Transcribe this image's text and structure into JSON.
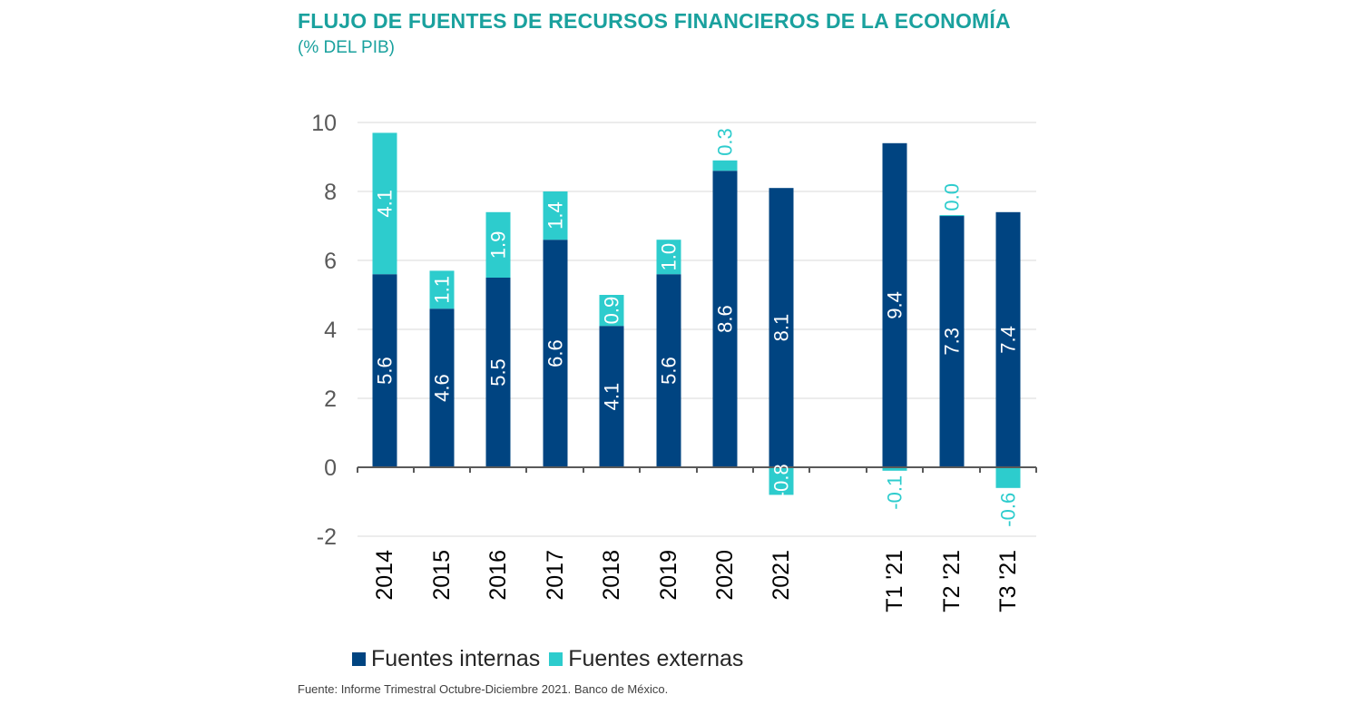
{
  "title": "FLUJO DE FUENTES DE RECURSOS FINANCIEROS DE LA ECONOMÍA",
  "subtitle": "(% DEL PIB)",
  "source": "Fuente: Informe Trimestral Octubre-Diciembre 2021. Banco de México.",
  "colors": {
    "internas": "#004481",
    "externas": "#2dcccd",
    "grid": "#d9d9d9",
    "axis": "#595959",
    "tick_text": "#595959",
    "title": "#1aa19e"
  },
  "chart_data": {
    "type": "bar",
    "stacked": true,
    "categories": [
      "2014",
      "2015",
      "2016",
      "2017",
      "2018",
      "2019",
      "2020",
      "2021",
      "T1 '21",
      "T2 '21",
      "T3 '21"
    ],
    "series": [
      {
        "name": "Fuentes internas",
        "values": [
          5.6,
          4.6,
          5.5,
          6.6,
          4.1,
          5.6,
          8.6,
          8.1,
          9.4,
          7.3,
          7.4
        ],
        "labels": [
          "5.6",
          "4.6",
          "5.5",
          "6.6",
          "4.1",
          "5.6",
          "8.6",
          "8.1",
          "9.4",
          "7.3",
          "7.4"
        ]
      },
      {
        "name": "Fuentes externas",
        "values": [
          4.1,
          1.1,
          1.9,
          1.4,
          0.9,
          1.0,
          0.3,
          -0.8,
          -0.1,
          0.0,
          -0.6
        ],
        "labels": [
          "4.1",
          "1.1",
          "1.9",
          "1.4",
          "0.9",
          "1.0",
          "0.3",
          "-0.8",
          "-0.1",
          "0.0",
          "-0.6"
        ]
      }
    ],
    "ylim": [
      -2,
      10
    ],
    "yticks": [
      "-2",
      "0",
      "2",
      "4",
      "6",
      "8",
      "10"
    ],
    "grid": true,
    "legend": "bottom",
    "xlabel": "",
    "ylabel": ""
  },
  "legend": {
    "internas_label": "Fuentes internas",
    "externas_label": "Fuentes externas"
  }
}
